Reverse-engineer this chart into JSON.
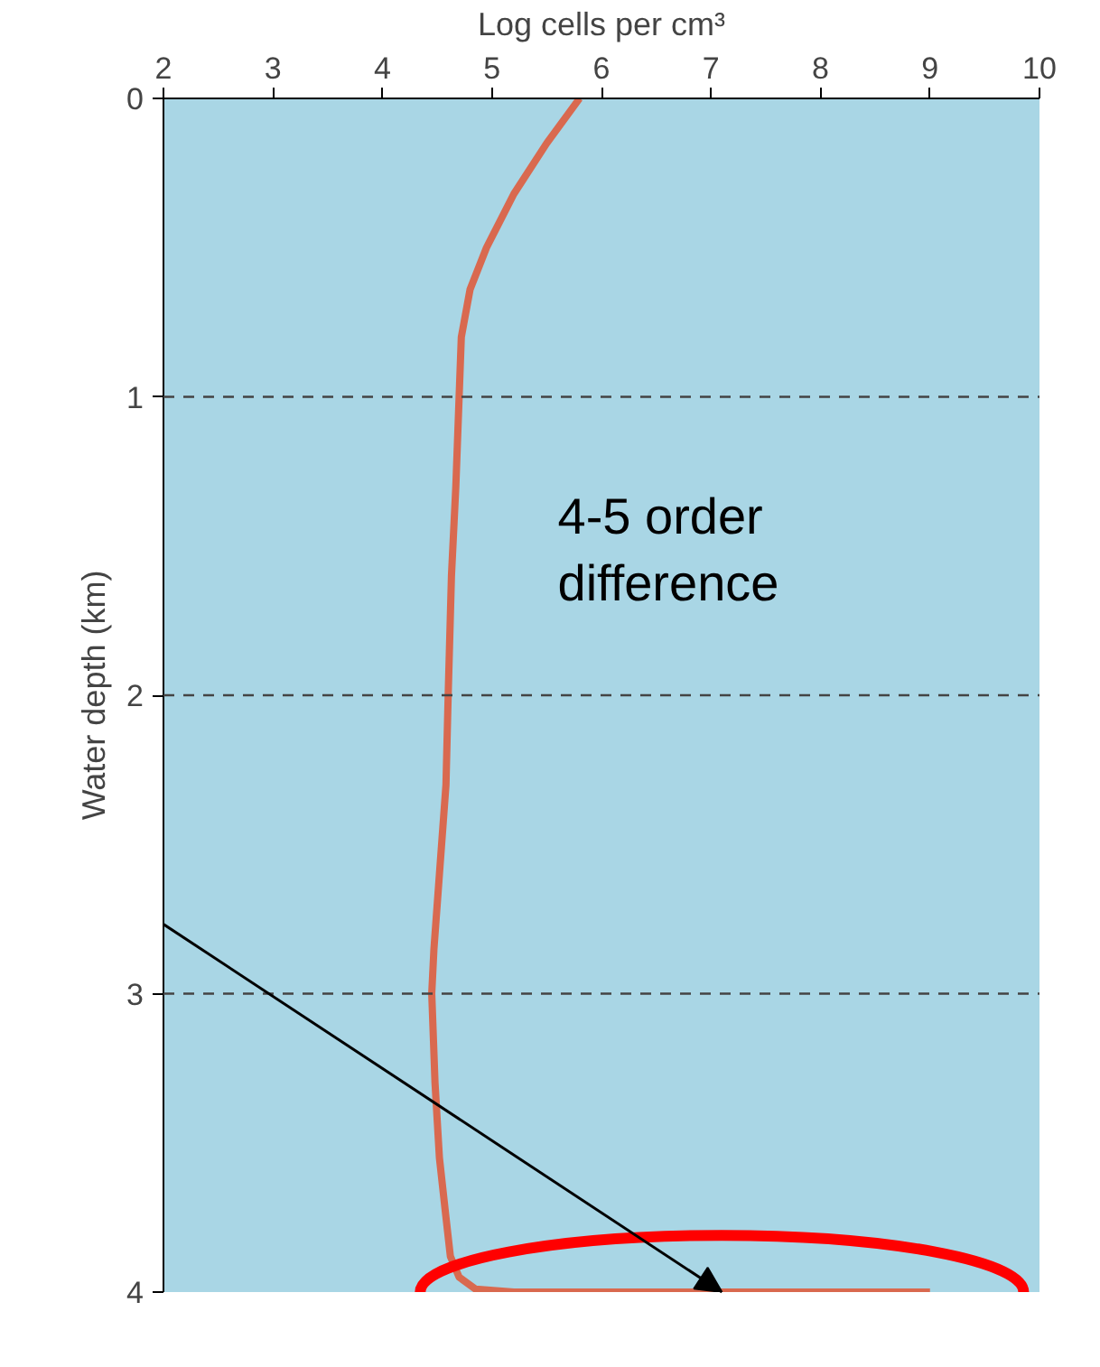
{
  "chart_data": {
    "type": "line",
    "xlabel": "Log cells per cm³",
    "ylabel": "Water depth (km)",
    "xlim": [
      2,
      10
    ],
    "ylim": [
      4,
      0
    ],
    "xticks": [
      2,
      3,
      4,
      5,
      6,
      7,
      8,
      9,
      10
    ],
    "yticks": [
      0,
      1,
      2,
      3,
      4
    ],
    "series": [
      {
        "color": "#d9694f",
        "x": [
          5.8,
          5.5,
          5.2,
          4.95,
          4.8,
          4.72,
          4.7,
          4.67,
          4.63,
          4.6,
          4.58,
          4.52,
          4.47,
          4.45,
          4.48,
          4.52,
          4.58,
          4.62,
          4.7,
          4.85,
          5.2,
          6,
          7,
          8,
          9
        ],
        "values": [
          0,
          0.15,
          0.32,
          0.5,
          0.64,
          0.8,
          1,
          1.3,
          1.6,
          2,
          2.3,
          2.6,
          2.85,
          3,
          3.3,
          3.55,
          3.75,
          3.88,
          3.95,
          3.99,
          4,
          4,
          4,
          4,
          4
        ]
      }
    ],
    "ref_lines": [
      {
        "axis": "y",
        "value": 1,
        "line_style": "dashed",
        "color": "#444444"
      },
      {
        "axis": "y",
        "value": 2,
        "line_style": "dashed",
        "color": "#444444"
      },
      {
        "axis": "y",
        "value": 3,
        "line_style": "dashed",
        "color": "#444444"
      }
    ],
    "annotations": [
      "4-5 order difference"
    ],
    "grid": false,
    "line_style": "solid"
  }
}
